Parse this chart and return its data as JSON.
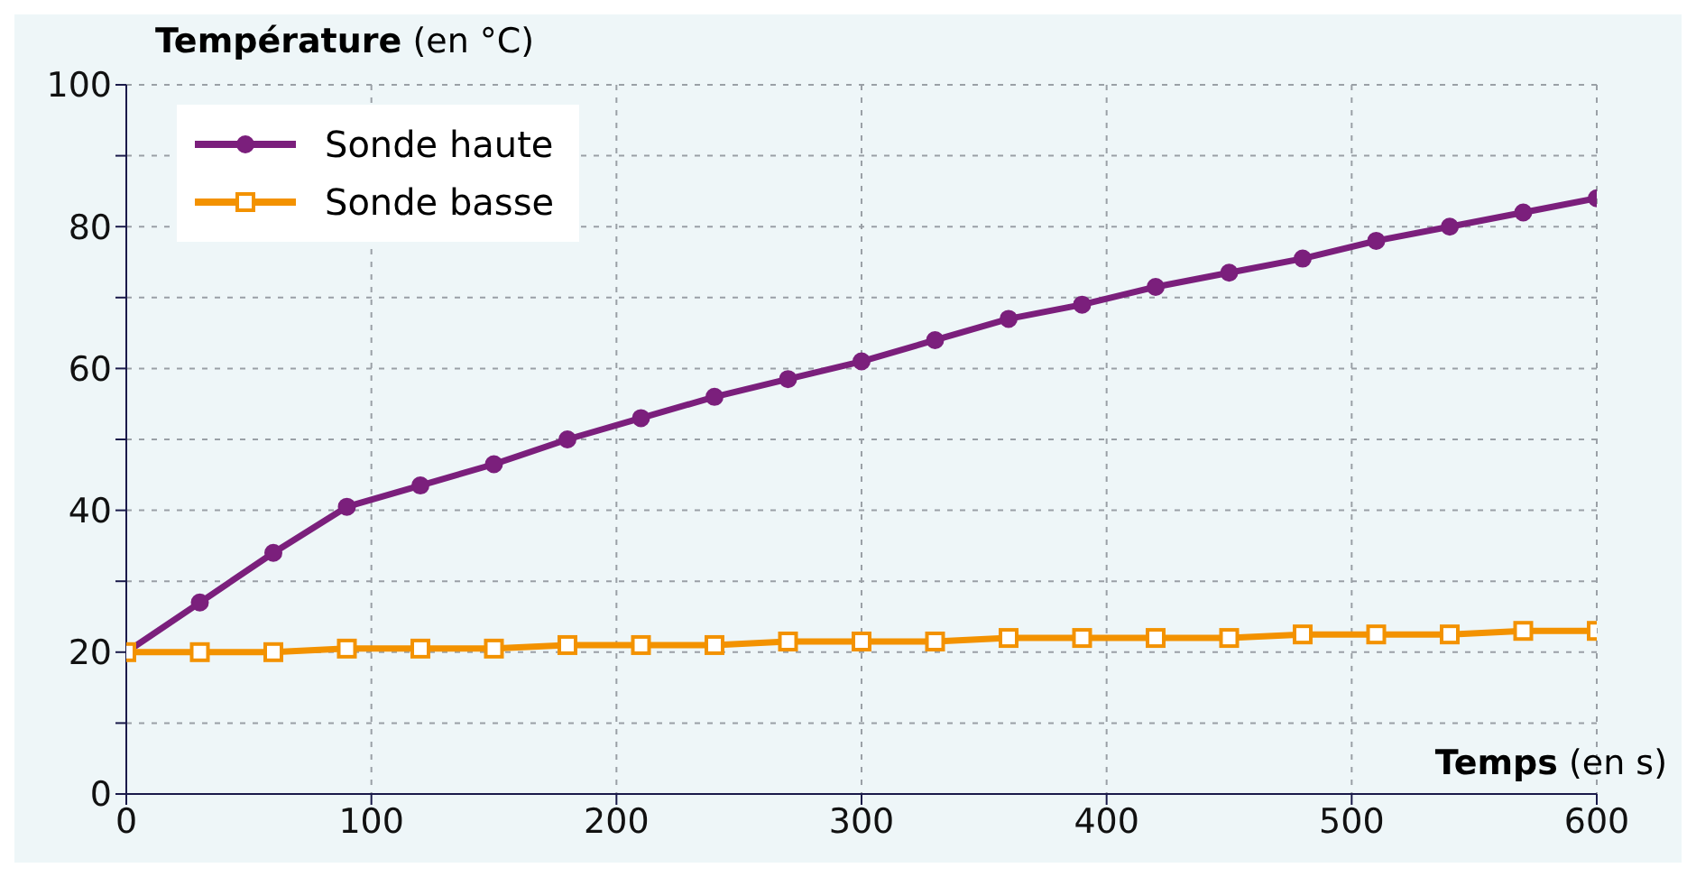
{
  "chart_data": {
    "type": "line",
    "xlabel": "Temps (en s)",
    "ylabel": "Température (en °C)",
    "x": [
      0,
      30,
      60,
      90,
      120,
      150,
      180,
      210,
      240,
      270,
      300,
      330,
      360,
      390,
      420,
      450,
      480,
      510,
      540,
      570,
      600
    ],
    "series": [
      {
        "name": "Sonde haute",
        "color": "#7b1f7c",
        "marker": "circle",
        "values": [
          20,
          27,
          34,
          40.5,
          43.5,
          46.5,
          50,
          53,
          56,
          58.5,
          61,
          64,
          67,
          69,
          71.5,
          73.5,
          75.5,
          78,
          80,
          82,
          84
        ]
      },
      {
        "name": "Sonde basse",
        "color": "#f39200",
        "marker": "square",
        "values": [
          20,
          20,
          20,
          20.5,
          20.5,
          20.5,
          21,
          21,
          21,
          21.5,
          21.5,
          21.5,
          22,
          22,
          22,
          22,
          22.5,
          22.5,
          22.5,
          23,
          23
        ]
      }
    ],
    "xlim": [
      0,
      600
    ],
    "xticks": [
      0,
      100,
      200,
      300,
      400,
      500,
      600
    ],
    "ylim": [
      0,
      100
    ],
    "yticks": [
      0,
      {
        "value": 10,
        "label": null
      },
      20,
      {
        "value": 30,
        "label": null
      },
      40,
      {
        "value": 50,
        "label": null
      },
      60,
      {
        "value": 70,
        "label": null
      },
      80,
      {
        "value": 90,
        "label": null
      },
      100
    ],
    "grid": true,
    "legend": "top left",
    "line_style": "solid"
  }
}
